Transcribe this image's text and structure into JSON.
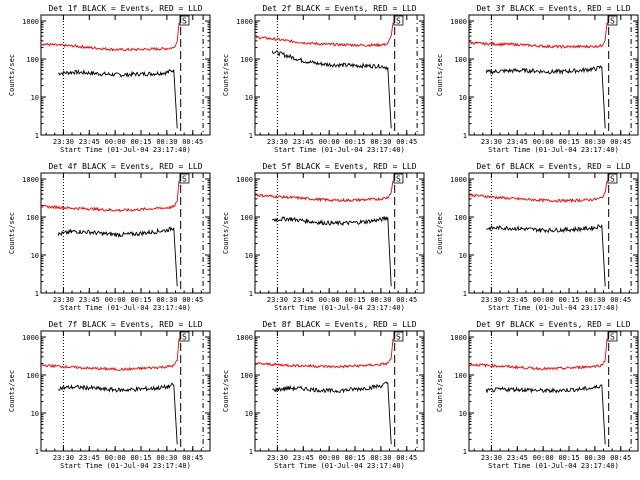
{
  "figure": {
    "background": "#ffffff",
    "axis_color": "#000000",
    "events_color": "#000000",
    "lld_color": "#ff0000"
  },
  "chart_data": [
    {
      "type": "line",
      "title": "Det 1f BLACK = Events, RED = LLD",
      "xlabel": "Start Time (01-Jul-04 23:17:40)",
      "ylabel": "Counts/sec",
      "x_ticks": [
        "23:30",
        "23:45",
        "00:00",
        "00:15",
        "00:30",
        "00:45"
      ],
      "y_ticks": [
        "1",
        "10",
        "100",
        "1000"
      ],
      "yscale": "log",
      "ylim": [
        1,
        1000
      ],
      "annotation": "S",
      "series": [
        {
          "name": "BLACK = Events",
          "color": "#000000",
          "x": [
            "23:27",
            "23:36",
            "23:45",
            "23:54",
            "00:03",
            "00:12",
            "00:21",
            "00:30",
            "00:34",
            "00:36"
          ],
          "values": [
            42,
            45,
            43,
            40,
            38,
            40,
            41,
            44,
            52,
            1.5
          ]
        },
        {
          "name": "RED = LLD",
          "color": "#ff0000",
          "x": [
            "23:17",
            "23:27",
            "23:36",
            "23:45",
            "23:54",
            "00:03",
            "00:12",
            "00:21",
            "00:30",
            "00:34",
            "00:36",
            "00:37"
          ],
          "values": [
            250,
            230,
            220,
            200,
            185,
            175,
            178,
            182,
            188,
            200,
            290,
            900
          ]
        }
      ],
      "markers": {
        "dotted": "23:30",
        "long_dash": "00:38",
        "short_dash": "00:51"
      }
    },
    {
      "type": "line",
      "title": "Det 2f BLACK = Events, RED = LLD",
      "xlabel": "Start Time (01-Jul-04 23:17:40)",
      "ylabel": "Counts/sec",
      "x_ticks": [
        "23:30",
        "23:45",
        "00:00",
        "00:15",
        "00:30",
        "00:45"
      ],
      "y_ticks": [
        "1",
        "10",
        "100",
        "1000"
      ],
      "yscale": "log",
      "ylim": [
        1,
        1000
      ],
      "annotation": "S",
      "series": [
        {
          "name": "BLACK = Events",
          "color": "#000000",
          "x": [
            "23:27",
            "23:36",
            "23:45",
            "23:54",
            "00:03",
            "00:12",
            "00:21",
            "00:30",
            "00:34",
            "00:36"
          ],
          "values": [
            160,
            120,
            90,
            75,
            70,
            68,
            66,
            65,
            60,
            1.5
          ]
        },
        {
          "name": "RED = LLD",
          "color": "#ff0000",
          "x": [
            "23:17",
            "23:27",
            "23:36",
            "23:45",
            "23:54",
            "00:03",
            "00:12",
            "00:21",
            "00:30",
            "00:34",
            "00:36",
            "00:37"
          ],
          "values": [
            380,
            340,
            300,
            270,
            250,
            240,
            235,
            230,
            235,
            250,
            400,
            900
          ]
        }
      ],
      "markers": {
        "dotted": "23:30",
        "long_dash": "00:38",
        "short_dash": "00:51"
      }
    },
    {
      "type": "line",
      "title": "Det 3f BLACK = Events, RED = LLD",
      "xlabel": "Start Time (01-Jul-04 23:17:40)",
      "ylabel": "Counts/sec",
      "x_ticks": [
        "23:30",
        "23:45",
        "00:00",
        "00:15",
        "00:30",
        "00:45"
      ],
      "y_ticks": [
        "1",
        "10",
        "100",
        "1000"
      ],
      "yscale": "log",
      "ylim": [
        1,
        1000
      ],
      "annotation": "S",
      "series": [
        {
          "name": "BLACK = Events",
          "color": "#000000",
          "x": [
            "23:27",
            "23:36",
            "23:45",
            "23:54",
            "00:03",
            "00:12",
            "00:21",
            "00:30",
            "00:34",
            "00:36"
          ],
          "values": [
            45,
            48,
            50,
            49,
            46,
            47,
            50,
            55,
            62,
            1.5
          ]
        },
        {
          "name": "RED = LLD",
          "color": "#ff0000",
          "x": [
            "23:17",
            "23:27",
            "23:36",
            "23:45",
            "23:54",
            "00:03",
            "00:12",
            "00:21",
            "00:30",
            "00:34",
            "00:36",
            "00:37"
          ],
          "values": [
            270,
            250,
            245,
            240,
            225,
            215,
            210,
            212,
            215,
            225,
            320,
            900
          ]
        }
      ],
      "markers": {
        "dotted": "23:30",
        "long_dash": "00:38",
        "short_dash": "00:51"
      }
    },
    {
      "type": "line",
      "title": "Det 4f BLACK = Events, RED = LLD",
      "xlabel": "Start Time (01-Jul-04 23:17:40)",
      "ylabel": "Counts/sec",
      "x_ticks": [
        "23:30",
        "23:45",
        "00:00",
        "00:15",
        "00:30",
        "00:45"
      ],
      "y_ticks": [
        "1",
        "10",
        "100",
        "1000"
      ],
      "yscale": "log",
      "ylim": [
        1,
        1000
      ],
      "annotation": "S",
      "series": [
        {
          "name": "BLACK = Events",
          "color": "#000000",
          "x": [
            "23:27",
            "23:36",
            "23:45",
            "23:54",
            "00:03",
            "00:12",
            "00:21",
            "00:30",
            "00:34",
            "00:36"
          ],
          "values": [
            35,
            42,
            40,
            36,
            34,
            36,
            40,
            45,
            52,
            1.5
          ]
        },
        {
          "name": "RED = LLD",
          "color": "#ff0000",
          "x": [
            "23:17",
            "23:27",
            "23:36",
            "23:45",
            "23:54",
            "00:03",
            "00:12",
            "00:21",
            "00:30",
            "00:34",
            "00:36",
            "00:37"
          ],
          "values": [
            190,
            180,
            170,
            165,
            155,
            150,
            155,
            165,
            175,
            185,
            260,
            900
          ]
        }
      ],
      "markers": {
        "dotted": "23:30",
        "long_dash": "00:38",
        "short_dash": "00:51"
      }
    },
    {
      "type": "line",
      "title": "Det 5f BLACK = Events, RED = LLD",
      "xlabel": "Start Time (01-Jul-04 23:17:40)",
      "ylabel": "Counts/sec",
      "x_ticks": [
        "23:30",
        "23:45",
        "00:00",
        "00:15",
        "00:30",
        "00:45"
      ],
      "y_ticks": [
        "1",
        "10",
        "100",
        "1000"
      ],
      "yscale": "log",
      "ylim": [
        1,
        1000
      ],
      "annotation": "S",
      "series": [
        {
          "name": "BLACK = Events",
          "color": "#000000",
          "x": [
            "23:27",
            "23:36",
            "23:45",
            "23:54",
            "00:03",
            "00:12",
            "00:21",
            "00:30",
            "00:34",
            "00:36"
          ],
          "values": [
            85,
            90,
            80,
            72,
            68,
            70,
            75,
            85,
            98,
            1.5
          ]
        },
        {
          "name": "RED = LLD",
          "color": "#ff0000",
          "x": [
            "23:17",
            "23:27",
            "23:36",
            "23:45",
            "23:54",
            "00:03",
            "00:12",
            "00:21",
            "00:30",
            "00:34",
            "00:36",
            "00:37"
          ],
          "values": [
            380,
            350,
            330,
            310,
            290,
            275,
            275,
            285,
            300,
            330,
            450,
            900
          ]
        }
      ],
      "markers": {
        "dotted": "23:30",
        "long_dash": "00:38",
        "short_dash": "00:51"
      }
    },
    {
      "type": "line",
      "title": "Det 6f BLACK = Events, RED = LLD",
      "xlabel": "Start Time (01-Jul-04 23:17:40)",
      "ylabel": "Counts/sec",
      "x_ticks": [
        "23:30",
        "23:45",
        "00:00",
        "00:15",
        "00:30",
        "00:45"
      ],
      "y_ticks": [
        "1",
        "10",
        "100",
        "1000"
      ],
      "yscale": "log",
      "ylim": [
        1,
        1000
      ],
      "annotation": "S",
      "series": [
        {
          "name": "BLACK = Events",
          "color": "#000000",
          "x": [
            "23:27",
            "23:36",
            "23:45",
            "23:54",
            "00:03",
            "00:12",
            "00:21",
            "00:30",
            "00:34",
            "00:36"
          ],
          "values": [
            50,
            52,
            50,
            47,
            45,
            46,
            48,
            52,
            62,
            1.5
          ]
        },
        {
          "name": "RED = LLD",
          "color": "#ff0000",
          "x": [
            "23:17",
            "23:27",
            "23:36",
            "23:45",
            "23:54",
            "00:03",
            "00:12",
            "00:21",
            "00:30",
            "00:34",
            "00:36",
            "00:37"
          ],
          "values": [
            380,
            350,
            320,
            300,
            285,
            270,
            268,
            275,
            290,
            320,
            450,
            900
          ]
        }
      ],
      "markers": {
        "dotted": "23:30",
        "long_dash": "00:38",
        "short_dash": "00:51"
      }
    },
    {
      "type": "line",
      "title": "Det 7f BLACK = Events, RED = LLD",
      "xlabel": "Start Time (01-Jul-04 23:17:40)",
      "ylabel": "Counts/sec",
      "x_ticks": [
        "23:30",
        "23:45",
        "00:00",
        "00:15",
        "00:30",
        "00:45"
      ],
      "y_ticks": [
        "1",
        "10",
        "100",
        "1000"
      ],
      "yscale": "log",
      "ylim": [
        1,
        1000
      ],
      "annotation": "S",
      "series": [
        {
          "name": "BLACK = Events",
          "color": "#000000",
          "x": [
            "23:27",
            "23:36",
            "23:45",
            "23:54",
            "00:03",
            "00:12",
            "00:21",
            "00:30",
            "00:34",
            "00:36"
          ],
          "values": [
            45,
            48,
            46,
            42,
            40,
            42,
            44,
            48,
            55,
            1.5
          ]
        },
        {
          "name": "RED = LLD",
          "color": "#ff0000",
          "x": [
            "23:17",
            "23:27",
            "23:36",
            "23:45",
            "23:54",
            "00:03",
            "00:12",
            "00:21",
            "00:30",
            "00:34",
            "00:36",
            "00:37"
          ],
          "values": [
            180,
            170,
            160,
            150,
            145,
            140,
            145,
            155,
            165,
            175,
            240,
            900
          ]
        }
      ],
      "markers": {
        "dotted": "23:30",
        "long_dash": "00:38",
        "short_dash": "00:51"
      }
    },
    {
      "type": "line",
      "title": "Det 8f BLACK = Events, RED = LLD",
      "xlabel": "Start Time (01-Jul-04 23:17:40)",
      "ylabel": "Counts/sec",
      "x_ticks": [
        "23:30",
        "23:45",
        "00:00",
        "00:15",
        "00:30",
        "00:45"
      ],
      "y_ticks": [
        "1",
        "10",
        "100",
        "1000"
      ],
      "yscale": "log",
      "ylim": [
        1,
        1000
      ],
      "annotation": "S",
      "series": [
        {
          "name": "BLACK = Events",
          "color": "#000000",
          "x": [
            "23:27",
            "23:36",
            "23:45",
            "23:54",
            "00:03",
            "00:12",
            "00:21",
            "00:30",
            "00:34",
            "00:36"
          ],
          "values": [
            40,
            45,
            44,
            40,
            38,
            41,
            45,
            52,
            62,
            1.5
          ]
        },
        {
          "name": "RED = LLD",
          "color": "#ff0000",
          "x": [
            "23:17",
            "23:27",
            "23:36",
            "23:45",
            "23:54",
            "00:03",
            "00:12",
            "00:21",
            "00:30",
            "00:34",
            "00:36",
            "00:37"
          ],
          "values": [
            200,
            190,
            180,
            175,
            170,
            165,
            170,
            178,
            190,
            200,
            280,
            900
          ]
        }
      ],
      "markers": {
        "dotted": "23:30",
        "long_dash": "00:38",
        "short_dash": "00:51"
      }
    },
    {
      "type": "line",
      "title": "Det 9f BLACK = Events, RED = LLD",
      "xlabel": "Start Time (01-Jul-04 23:17:40)",
      "ylabel": "Counts/sec",
      "x_ticks": [
        "23:30",
        "23:45",
        "00:00",
        "00:15",
        "00:30",
        "00:45"
      ],
      "y_ticks": [
        "1",
        "10",
        "100",
        "1000"
      ],
      "yscale": "log",
      "ylim": [
        1,
        1000
      ],
      "annotation": "S",
      "series": [
        {
          "name": "BLACK = Events",
          "color": "#000000",
          "x": [
            "23:27",
            "23:36",
            "23:45",
            "23:54",
            "00:03",
            "00:12",
            "00:21",
            "00:30",
            "00:34",
            "00:36"
          ],
          "values": [
            38,
            42,
            42,
            40,
            38,
            40,
            42,
            46,
            55,
            1.5
          ]
        },
        {
          "name": "RED = LLD",
          "color": "#ff0000",
          "x": [
            "23:17",
            "23:27",
            "23:36",
            "23:45",
            "23:54",
            "00:03",
            "00:12",
            "00:21",
            "00:30",
            "00:34",
            "00:36",
            "00:37"
          ],
          "values": [
            190,
            180,
            170,
            160,
            150,
            145,
            150,
            160,
            170,
            180,
            250,
            900
          ]
        }
      ],
      "markers": {
        "dotted": "23:30",
        "long_dash": "00:38",
        "short_dash": "00:51"
      }
    }
  ]
}
